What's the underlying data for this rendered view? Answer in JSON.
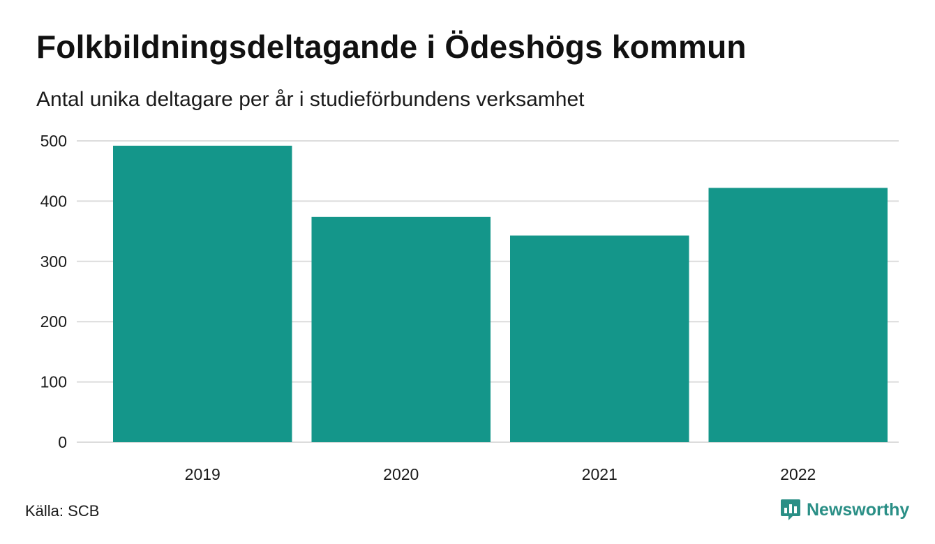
{
  "title": "Folkbildningsdeltagande i Ödeshögs kommun",
  "subtitle": "Antal unika deltagare per år i studieförbundens verksamhet",
  "source": "Källa: SCB",
  "brand": {
    "name": "Newsworthy",
    "icon": "newsworthy-logo-icon"
  },
  "colors": {
    "bar": "#14968a",
    "grid": "#dcdcdc",
    "brand": "#2a8f86"
  },
  "chart_data": {
    "type": "bar",
    "categories": [
      "2019",
      "2020",
      "2021",
      "2022"
    ],
    "values": [
      492,
      374,
      343,
      422
    ],
    "title": "Folkbildningsdeltagande i Ödeshögs kommun",
    "subtitle": "Antal unika deltagare per år i studieförbundens verksamhet",
    "xlabel": "",
    "ylabel": "",
    "ylim": [
      0,
      500
    ],
    "yticks": [
      0,
      100,
      200,
      300,
      400,
      500
    ],
    "grid": true,
    "legend": "none"
  }
}
